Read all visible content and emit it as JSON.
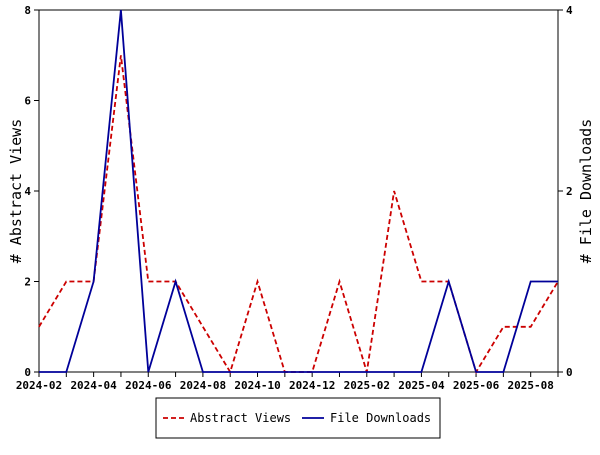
{
  "chart_data": {
    "type": "line",
    "x": [
      "2024-02",
      "2024-03",
      "2024-04",
      "2024-05",
      "2024-06",
      "2024-07",
      "2024-08",
      "2024-09",
      "2024-10",
      "2024-11",
      "2024-12",
      "2025-01",
      "2025-02",
      "2025-03",
      "2025-04",
      "2025-05",
      "2025-06",
      "2025-07",
      "2025-08",
      "2025-09"
    ],
    "x_tick_labels": [
      "2024-02",
      "2024-04",
      "2024-06",
      "2024-08",
      "2024-10",
      "2024-12",
      "2025-02",
      "2025-04",
      "2025-06",
      "2025-08"
    ],
    "series": [
      {
        "name": "Abstract Views",
        "axis": "left",
        "color": "#cc0000",
        "style": "dashed",
        "values": [
          1,
          2,
          2,
          7,
          2,
          2,
          1,
          0,
          2,
          0,
          0,
          2,
          0,
          4,
          2,
          2,
          0,
          1,
          1,
          2
        ]
      },
      {
        "name": "File Downloads",
        "axis": "right",
        "color": "#000099",
        "style": "solid",
        "values": [
          0,
          0,
          1,
          4,
          0,
          1,
          0,
          0,
          0,
          0,
          0,
          0,
          0,
          0,
          0,
          1,
          0,
          0,
          1,
          1
        ]
      }
    ],
    "ylabel": "# Abstract Views",
    "ylabel_right": "# File Downloads",
    "ylim": [
      0,
      8
    ],
    "ylim_right": [
      0,
      4
    ],
    "y_ticks": [
      "0",
      "2",
      "4",
      "6",
      "8"
    ],
    "y_ticks_right": [
      "0",
      "2",
      "4"
    ],
    "grid": false,
    "legend_position": "bottom"
  }
}
